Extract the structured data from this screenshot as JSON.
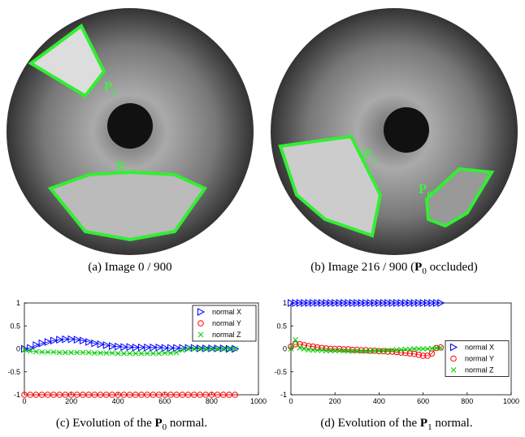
{
  "figures": [
    {
      "caption": [
        "(a) Image 0 / 900"
      ],
      "labels": [
        {
          "main": "P",
          "sub": "1"
        },
        {
          "main": "P",
          "sub": "0"
        }
      ]
    },
    {
      "caption": [
        "(b) Image 216 / 900 (",
        "P",
        "0",
        " occluded)"
      ],
      "labels": [
        {
          "main": "P",
          "sub": "1"
        },
        {
          "main": "P",
          "sub": "0"
        }
      ]
    },
    {
      "caption": [
        "(c) Evolution of the ",
        "P",
        "0",
        " normal."
      ]
    },
    {
      "caption": [
        "(d) Evolution of the ",
        "P",
        "1",
        " normal."
      ]
    }
  ],
  "chart_data": [
    {
      "type": "line",
      "legend": "upper right",
      "x": [
        0,
        25,
        50,
        75,
        100,
        125,
        150,
        175,
        200,
        225,
        250,
        275,
        300,
        325,
        350,
        375,
        400,
        425,
        450,
        475,
        500,
        525,
        550,
        575,
        600,
        625,
        650,
        675,
        700,
        725,
        750,
        775,
        800,
        825,
        850,
        875,
        900
      ],
      "series": [
        {
          "name": "normal X",
          "color": "#0000ff",
          "marker": "triangle",
          "values": [
            0,
            0.02,
            0.08,
            0.12,
            0.15,
            0.18,
            0.2,
            0.21,
            0.21,
            0.2,
            0.18,
            0.15,
            0.12,
            0.1,
            0.08,
            0.06,
            0.05,
            0.04,
            0.04,
            0.03,
            0.03,
            0.03,
            0.03,
            0.03,
            0.02,
            0.02,
            0.02,
            0.02,
            0.02,
            0.02,
            0.01,
            0.01,
            0.01,
            0.01,
            0.01,
            0,
            0
          ]
        },
        {
          "name": "normal Y",
          "color": "#ff0000",
          "marker": "circle",
          "values": [
            -1,
            -1,
            -1,
            -1,
            -1,
            -1,
            -1,
            -1,
            -1,
            -1,
            -1,
            -1,
            -1,
            -1,
            -1,
            -1,
            -1,
            -1,
            -1,
            -1,
            -1,
            -1,
            -1,
            -1,
            -1,
            -1,
            -1,
            -1,
            -1,
            -1,
            -1,
            -1,
            -1,
            -1,
            -1,
            -1,
            -1
          ]
        },
        {
          "name": "normal Z",
          "color": "#00cc00",
          "marker": "x",
          "values": [
            -0.02,
            -0.05,
            -0.06,
            -0.07,
            -0.07,
            -0.07,
            -0.08,
            -0.08,
            -0.08,
            -0.08,
            -0.08,
            -0.08,
            -0.09,
            -0.09,
            -0.09,
            -0.09,
            -0.1,
            -0.1,
            -0.1,
            -0.1,
            -0.1,
            -0.1,
            -0.1,
            -0.1,
            -0.09,
            -0.09,
            -0.08,
            -0.03,
            0,
            0,
            0,
            0,
            0,
            0,
            0,
            0,
            0
          ]
        }
      ],
      "xlim": [
        0,
        1000
      ],
      "ylim": [
        -1,
        1
      ],
      "xticks": [
        0,
        200,
        400,
        600,
        800,
        1000
      ],
      "yticks": [
        -1,
        -0.5,
        0,
        0.5,
        1
      ]
    },
    {
      "type": "line",
      "legend": "right",
      "x": [
        0,
        20,
        40,
        60,
        80,
        100,
        120,
        140,
        160,
        180,
        200,
        220,
        240,
        260,
        280,
        300,
        320,
        340,
        360,
        380,
        400,
        420,
        440,
        460,
        480,
        500,
        520,
        540,
        560,
        580,
        600,
        620,
        640,
        660,
        680
      ],
      "series": [
        {
          "name": "normal X",
          "color": "#0000ff",
          "marker": "triangle",
          "values": [
            1,
            1,
            1,
            1,
            1,
            1,
            1,
            1,
            1,
            1,
            1,
            1,
            1,
            1,
            1,
            1,
            1,
            1,
            1,
            1,
            1,
            1,
            1,
            1,
            1,
            1,
            1,
            1,
            1,
            1,
            1,
            1,
            1,
            1,
            1
          ]
        },
        {
          "name": "normal Y",
          "color": "#ff0000",
          "marker": "circle",
          "values": [
            0.05,
            0.1,
            0.1,
            0.08,
            0.06,
            0.05,
            0.03,
            0.02,
            0.01,
            0,
            0,
            0,
            -0.01,
            -0.01,
            -0.02,
            -0.02,
            -0.03,
            -0.03,
            -0.04,
            -0.04,
            -0.05,
            -0.05,
            -0.06,
            -0.06,
            -0.07,
            -0.08,
            -0.09,
            -0.1,
            -0.11,
            -0.13,
            -0.15,
            -0.15,
            -0.1,
            0.02,
            0.03
          ]
        },
        {
          "name": "normal Z",
          "color": "#00cc00",
          "marker": "x",
          "values": [
            0,
            0.2,
            0.02,
            0,
            -0.02,
            -0.03,
            -0.03,
            -0.03,
            -0.04,
            -0.04,
            -0.04,
            -0.04,
            -0.04,
            -0.05,
            -0.05,
            -0.05,
            -0.05,
            -0.05,
            -0.05,
            -0.04,
            -0.04,
            -0.04,
            -0.03,
            -0.03,
            -0.02,
            -0.02,
            -0.01,
            -0.01,
            0,
            0,
            0,
            0,
            0.01,
            0.02,
            0.02
          ]
        }
      ],
      "xlim": [
        0,
        1000
      ],
      "ylim": [
        -1,
        1
      ],
      "xticks": [
        0,
        200,
        400,
        600,
        800,
        1000
      ],
      "yticks": [
        -1,
        -0.5,
        0,
        0.5,
        1
      ]
    }
  ]
}
